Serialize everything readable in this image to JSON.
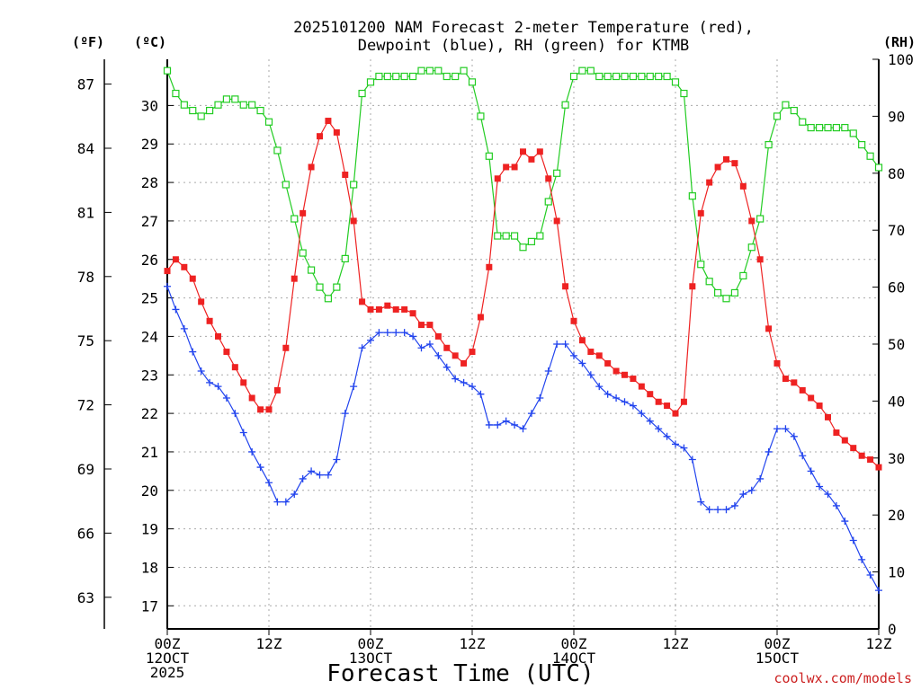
{
  "chart_data": {
    "type": "line",
    "title_lines": [
      "2025101200 NAM Forecast 2-meter Temperature (red),",
      "Dewpoint (blue), RH (green) for KTMB"
    ],
    "axis_unit_labels": {
      "fahrenheit": "(ºF)",
      "celsius": "(ºC)",
      "rh": "(RH)"
    },
    "xlabel": "Forecast Time (UTC)",
    "credit": "coolwx.com/models",
    "xlim_hours": [
      0,
      84
    ],
    "y_celsius_lim": [
      16.4,
      31.2
    ],
    "y_rh_lim": [
      0,
      100
    ],
    "x_ticks": [
      {
        "hour": 0,
        "lines": [
          "00Z",
          "12OCT",
          "2025"
        ]
      },
      {
        "hour": 12,
        "lines": [
          "12Z"
        ]
      },
      {
        "hour": 24,
        "lines": [
          "00Z",
          "13OCT"
        ]
      },
      {
        "hour": 36,
        "lines": [
          "12Z"
        ]
      },
      {
        "hour": 48,
        "lines": [
          "00Z",
          "14OCT"
        ]
      },
      {
        "hour": 60,
        "lines": [
          "12Z"
        ]
      },
      {
        "hour": 72,
        "lines": [
          "00Z",
          "15OCT"
        ]
      },
      {
        "hour": 84,
        "lines": [
          "12Z"
        ]
      }
    ],
    "celsius_ticks": [
      "17",
      "18",
      "19",
      "20",
      "21",
      "22",
      "23",
      "24",
      "25",
      "26",
      "27",
      "28",
      "29",
      "30"
    ],
    "fahrenheit_ticks": [
      "63",
      "66",
      "69",
      "72",
      "75",
      "78",
      "81",
      "84",
      "87"
    ],
    "rh_ticks": [
      "0",
      "10",
      "20",
      "30",
      "40",
      "50",
      "60",
      "70",
      "80",
      "90",
      "100"
    ],
    "hours": [
      0,
      1,
      2,
      3,
      4,
      5,
      6,
      7,
      8,
      9,
      10,
      11,
      12,
      13,
      14,
      15,
      16,
      17,
      18,
      19,
      20,
      21,
      22,
      23,
      24,
      25,
      26,
      27,
      28,
      29,
      30,
      31,
      32,
      33,
      34,
      35,
      36,
      37,
      38,
      39,
      40,
      41,
      42,
      43,
      44,
      45,
      46,
      47,
      48,
      49,
      50,
      51,
      52,
      53,
      54,
      55,
      56,
      57,
      58,
      59,
      60,
      61,
      62,
      63,
      64,
      65,
      66,
      67,
      68,
      69,
      70,
      71,
      72,
      73,
      74,
      75,
      76,
      77,
      78,
      79,
      80,
      81,
      82,
      83,
      84
    ],
    "series": [
      {
        "name": "2-meter Temperature",
        "unit": "C",
        "color": "#ee2222",
        "marker": "filled-square",
        "values": [
          25.7,
          26.0,
          25.8,
          25.5,
          24.9,
          24.4,
          24.0,
          23.6,
          23.2,
          22.8,
          22.4,
          22.1,
          22.1,
          22.6,
          23.7,
          25.5,
          27.2,
          28.4,
          29.2,
          29.6,
          29.3,
          28.2,
          27.0,
          24.9,
          24.7,
          24.7,
          24.8,
          24.7,
          24.7,
          24.6,
          24.3,
          24.3,
          24.0,
          23.7,
          23.5,
          23.3,
          23.6,
          24.5,
          25.8,
          28.1,
          28.4,
          28.4,
          28.8,
          28.6,
          28.8,
          28.1,
          27.0,
          25.3,
          24.4,
          23.9,
          23.6,
          23.5,
          23.3,
          23.1,
          23.0,
          22.9,
          22.7,
          22.5,
          22.3,
          22.2,
          22.0,
          22.3,
          25.3,
          27.2,
          28.0,
          28.4,
          28.6,
          28.5,
          27.9,
          27.0,
          26.0,
          24.2,
          23.3,
          22.9,
          22.8,
          22.6,
          22.4,
          22.2,
          21.9,
          21.5,
          21.3,
          21.1,
          20.9,
          20.8,
          20.6
        ]
      },
      {
        "name": "Dewpoint",
        "unit": "C",
        "color": "#2244ee",
        "marker": "plus",
        "values": [
          25.3,
          24.7,
          24.2,
          23.6,
          23.1,
          22.8,
          22.7,
          22.4,
          22.0,
          21.5,
          21.0,
          20.6,
          20.2,
          19.7,
          19.7,
          19.9,
          20.3,
          20.5,
          20.4,
          20.4,
          20.8,
          22.0,
          22.7,
          23.7,
          23.9,
          24.1,
          24.1,
          24.1,
          24.1,
          24.0,
          23.7,
          23.8,
          23.5,
          23.2,
          22.9,
          22.8,
          22.7,
          22.5,
          21.7,
          21.7,
          21.8,
          21.7,
          21.6,
          22.0,
          22.4,
          23.1,
          23.8,
          23.8,
          23.5,
          23.3,
          23.0,
          22.7,
          22.5,
          22.4,
          22.3,
          22.2,
          22.0,
          21.8,
          21.6,
          21.4,
          21.2,
          21.1,
          20.8,
          19.7,
          19.5,
          19.5,
          19.5,
          19.6,
          19.9,
          20.0,
          20.3,
          21.0,
          21.6,
          21.6,
          21.4,
          20.9,
          20.5,
          20.1,
          19.9,
          19.6,
          19.2,
          18.7,
          18.2,
          17.8,
          17.4
        ]
      },
      {
        "name": "RH",
        "unit": "%",
        "color": "#22cc22",
        "marker": "open-square",
        "values": [
          98,
          94,
          92,
          91,
          90,
          91,
          92,
          93,
          93,
          92,
          92,
          91,
          89,
          84,
          78,
          72,
          66,
          63,
          60,
          58,
          60,
          65,
          78,
          94,
          96,
          97,
          97,
          97,
          97,
          97,
          98,
          98,
          98,
          97,
          97,
          98,
          96,
          90,
          83,
          69,
          69,
          69,
          67,
          68,
          69,
          75,
          80,
          92,
          97,
          98,
          98,
          97,
          97,
          97,
          97,
          97,
          97,
          97,
          97,
          97,
          96,
          94,
          76,
          64,
          61,
          59,
          58,
          59,
          62,
          67,
          72,
          85,
          90,
          92,
          91,
          89,
          88,
          88,
          88,
          88,
          88,
          87,
          85,
          83,
          81
        ]
      }
    ]
  }
}
